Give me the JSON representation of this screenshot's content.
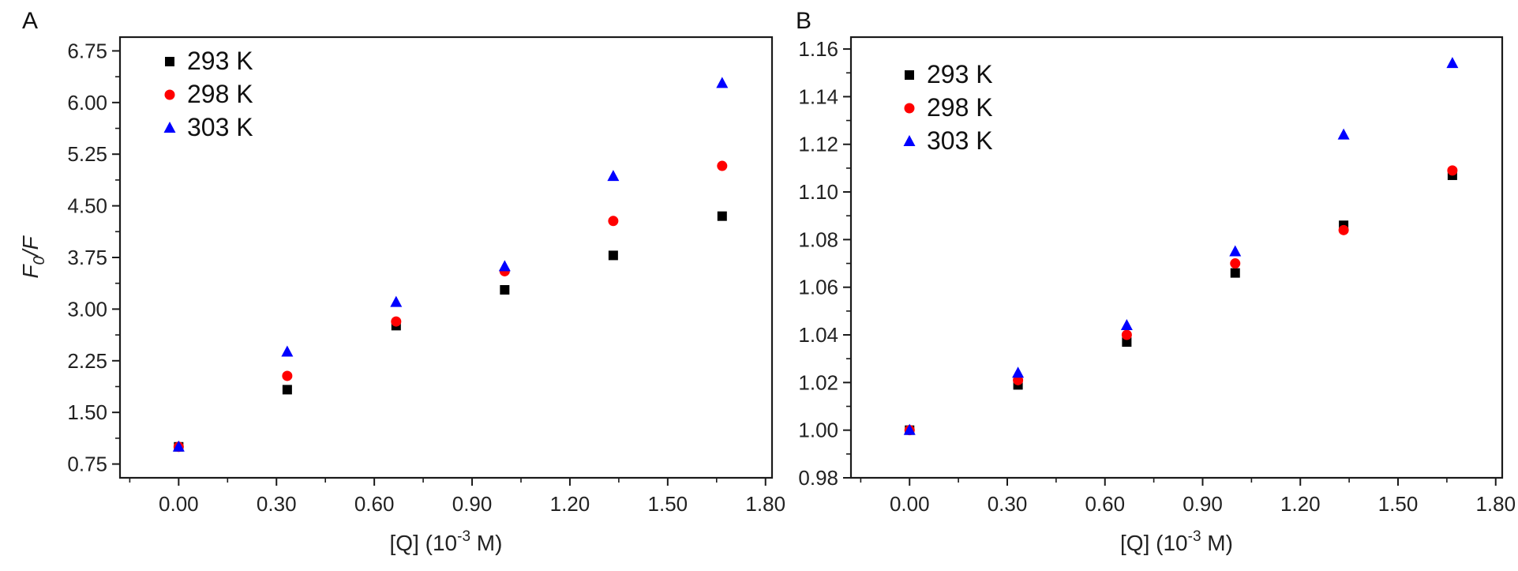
{
  "chart_data": [
    {
      "type": "scatter",
      "panel_label": "A",
      "xlabel_main": "[Q] (10",
      "xlabel_sup": "-3",
      "xlabel_end": " M)",
      "ylabel_main": "F",
      "ylabel_sub": "0",
      "ylabel_end": "/F",
      "xlim": [
        -0.18,
        1.82
      ],
      "ylim": [
        0.55,
        6.95
      ],
      "xticks": [
        0.0,
        0.3,
        0.6,
        0.9,
        1.2,
        1.5,
        1.8
      ],
      "xtick_labels": [
        "0.00",
        "0.30",
        "0.60",
        "0.90",
        "1.20",
        "1.50",
        "1.80"
      ],
      "yticks": [
        0.75,
        1.5,
        2.25,
        3.0,
        3.75,
        4.5,
        5.25,
        6.0,
        6.75
      ],
      "ytick_labels": [
        "0.75",
        "1.50",
        "2.25",
        "3.00",
        "3.75",
        "4.50",
        "5.25",
        "6.00",
        "6.75"
      ],
      "legend_position": "top-left",
      "x": [
        0.0,
        0.333,
        0.667,
        1.0,
        1.333,
        1.667
      ],
      "series": [
        {
          "name": "293 K",
          "marker": "square",
          "color": "#000000",
          "values": [
            1.0,
            1.83,
            2.76,
            3.28,
            3.78,
            4.35
          ]
        },
        {
          "name": "298 K",
          "marker": "circle",
          "color": "#ff0000",
          "values": [
            1.0,
            2.03,
            2.82,
            3.55,
            4.28,
            5.08
          ]
        },
        {
          "name": "303 K",
          "marker": "triangle",
          "color": "#0000ff",
          "values": [
            1.0,
            2.38,
            3.1,
            3.62,
            4.93,
            6.28
          ]
        }
      ]
    },
    {
      "type": "scatter",
      "panel_label": "B",
      "xlabel_main": "[Q] (10",
      "xlabel_sup": "-3",
      "xlabel_end": " M)",
      "ylabel_main": "",
      "ylabel_sub": "",
      "ylabel_end": "",
      "xlim": [
        -0.18,
        1.82
      ],
      "ylim": [
        0.98,
        1.165
      ],
      "xticks": [
        0.0,
        0.3,
        0.6,
        0.9,
        1.2,
        1.5,
        1.8
      ],
      "xtick_labels": [
        "0.00",
        "0.30",
        "0.60",
        "0.90",
        "1.20",
        "1.50",
        "1.80"
      ],
      "yticks": [
        0.98,
        1.0,
        1.02,
        1.04,
        1.06,
        1.08,
        1.1,
        1.12,
        1.14,
        1.16
      ],
      "ytick_labels": [
        "0.98",
        "1.00",
        "1.02",
        "1.04",
        "1.06",
        "1.08",
        "1.10",
        "1.12",
        "1.14",
        "1.16"
      ],
      "legend_position": "top-left",
      "x": [
        0.0,
        0.333,
        0.667,
        1.0,
        1.333,
        1.667
      ],
      "series": [
        {
          "name": "293 K",
          "marker": "square",
          "color": "#000000",
          "values": [
            1.0,
            1.019,
            1.037,
            1.066,
            1.086,
            1.107
          ]
        },
        {
          "name": "298 K",
          "marker": "circle",
          "color": "#ff0000",
          "values": [
            1.0,
            1.021,
            1.04,
            1.07,
            1.084,
            1.109
          ]
        },
        {
          "name": "303 K",
          "marker": "triangle",
          "color": "#0000ff",
          "values": [
            1.0,
            1.024,
            1.044,
            1.075,
            1.124,
            1.154
          ]
        }
      ]
    }
  ]
}
